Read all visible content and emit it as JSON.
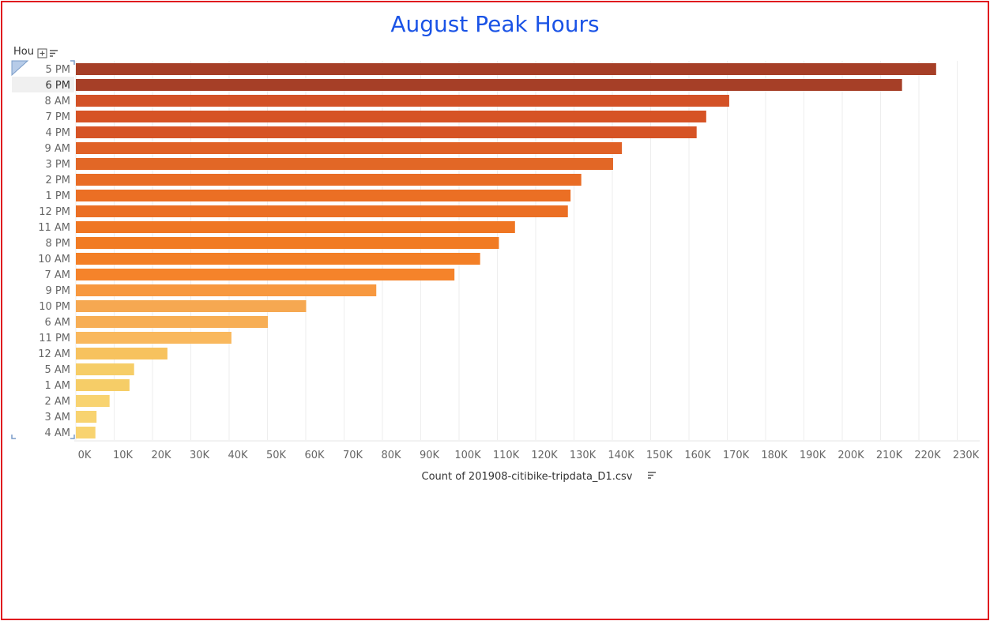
{
  "chart_data": {
    "type": "bar",
    "orientation": "horizontal",
    "title": "August Peak Hours",
    "row_header": "Hou",
    "xlabel": "Count of 201908-citibike-tripdata_D1.csv",
    "xlim": [
      0,
      235000
    ],
    "xticks": [
      0,
      10000,
      20000,
      30000,
      40000,
      50000,
      60000,
      70000,
      80000,
      90000,
      100000,
      110000,
      120000,
      130000,
      140000,
      150000,
      160000,
      170000,
      180000,
      190000,
      200000,
      210000,
      220000,
      230000
    ],
    "xtick_labels": [
      "0K",
      "10K",
      "20K",
      "30K",
      "40K",
      "50K",
      "60K",
      "70K",
      "80K",
      "90K",
      "100K",
      "110K",
      "120K",
      "130K",
      "140K",
      "150K",
      "160K",
      "170K",
      "180K",
      "190K",
      "200K",
      "210K",
      "220K",
      "230K"
    ],
    "grid": true,
    "categories": [
      "5 PM",
      "6 PM",
      "8 AM",
      "7 PM",
      "4 PM",
      "9 AM",
      "3 PM",
      "2 PM",
      "1 PM",
      "12 PM",
      "11 AM",
      "8 PM",
      "10 AM",
      "7 AM",
      "9 PM",
      "10 PM",
      "6 AM",
      "11 PM",
      "12 AM",
      "5 AM",
      "1 AM",
      "2 AM",
      "3 AM",
      "4 AM"
    ],
    "values": [
      224500,
      215600,
      170500,
      164500,
      162000,
      142500,
      140200,
      131900,
      129100,
      128400,
      114600,
      110400,
      105500,
      98800,
      78400,
      60100,
      50100,
      40600,
      23900,
      15200,
      14000,
      8800,
      5400,
      5100
    ],
    "colors": [
      "#a63f27",
      "#a63f27",
      "#d35126",
      "#d65325",
      "#d65325",
      "#e06126",
      "#e26726",
      "#e96c25",
      "#eb6f24",
      "#eb6f24",
      "#ef7623",
      "#f17b23",
      "#f37f26",
      "#f5832a",
      "#f7983f",
      "#f6a851",
      "#f7ae55",
      "#f9b85d",
      "#f7c25e",
      "#f6cd67",
      "#f6cd67",
      "#f8d370",
      "#f8d370",
      "#f8d370"
    ]
  }
}
